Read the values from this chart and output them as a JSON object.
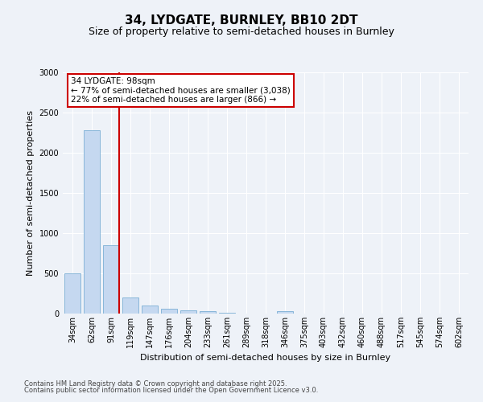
{
  "title": "34, LYDGATE, BURNLEY, BB10 2DT",
  "subtitle": "Size of property relative to semi-detached houses in Burnley",
  "xlabel": "Distribution of semi-detached houses by size in Burnley",
  "ylabel": "Number of semi-detached properties",
  "categories": [
    "34sqm",
    "62sqm",
    "91sqm",
    "119sqm",
    "147sqm",
    "176sqm",
    "204sqm",
    "233sqm",
    "261sqm",
    "289sqm",
    "318sqm",
    "346sqm",
    "375sqm",
    "403sqm",
    "432sqm",
    "460sqm",
    "488sqm",
    "517sqm",
    "545sqm",
    "574sqm",
    "602sqm"
  ],
  "values": [
    500,
    2280,
    850,
    200,
    100,
    65,
    45,
    30,
    15,
    5,
    0,
    30,
    0,
    0,
    0,
    0,
    0,
    0,
    0,
    0,
    0
  ],
  "bar_color": "#c5d8f0",
  "bar_edge_color": "#7bafd4",
  "annotation_line1": "34 LYDGATE: 98sqm",
  "annotation_line2": "← 77% of semi-detached houses are smaller (3,038)",
  "annotation_line3": "22% of semi-detached houses are larger (866) →",
  "annotation_box_color": "#ffffff",
  "annotation_box_edge": "#cc0000",
  "vline_color": "#cc0000",
  "vline_x": 2.43,
  "ylim": [
    0,
    3000
  ],
  "yticks": [
    0,
    500,
    1000,
    1500,
    2000,
    2500,
    3000
  ],
  "footer1": "Contains HM Land Registry data © Crown copyright and database right 2025.",
  "footer2": "Contains public sector information licensed under the Open Government Licence v3.0.",
  "bg_color": "#eef2f8",
  "plot_bg_color": "#eef2f8",
  "grid_color": "#ffffff",
  "title_fontsize": 11,
  "subtitle_fontsize": 9,
  "axis_label_fontsize": 8,
  "tick_fontsize": 7,
  "footer_fontsize": 6
}
